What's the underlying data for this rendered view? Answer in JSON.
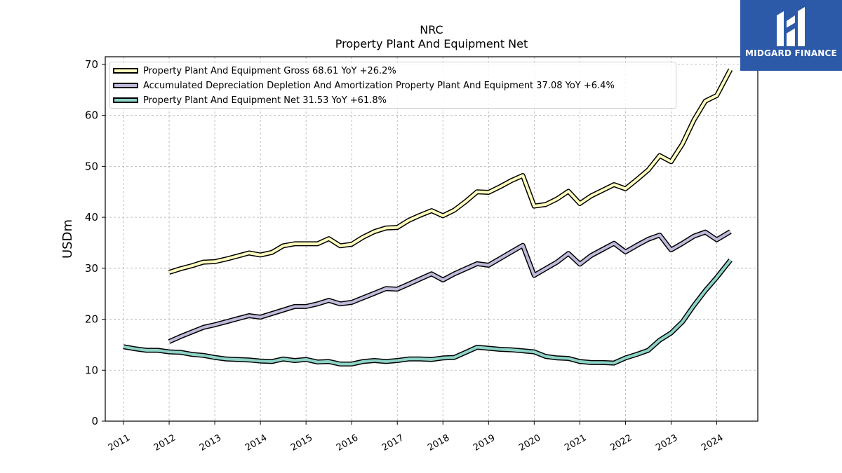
{
  "header": {
    "ticker": "NRC",
    "subtitle": "Property Plant And Equipment Net"
  },
  "logo": {
    "text": "MIDGARD FINANCE",
    "color": "#2c5aa8"
  },
  "chart_data": {
    "type": "line",
    "title": "NRC",
    "subtitle": "Property Plant And Equipment Net",
    "xlabel": "",
    "ylabel": "USDm",
    "xlim": [
      2010.6,
      2024.9
    ],
    "ylim": [
      0,
      71.5
    ],
    "yticks": [
      0,
      10,
      20,
      30,
      40,
      50,
      60,
      70
    ],
    "ytick_labels": [
      "0",
      "10",
      "20",
      "30",
      "40",
      "50",
      "60",
      "70"
    ],
    "xticks": [
      2011,
      2012,
      2013,
      2014,
      2015,
      2016,
      2017,
      2018,
      2019,
      2020,
      2021,
      2022,
      2023,
      2024
    ],
    "xtick_labels": [
      "2011",
      "2012",
      "2013",
      "2014",
      "2015",
      "2016",
      "2017",
      "2018",
      "2019",
      "2020",
      "2021",
      "2022",
      "2023",
      "2024"
    ],
    "grid": true,
    "legend_placement": "top-left",
    "series": [
      {
        "name": "Property Plant And Equipment Gross",
        "legend_label": "Property Plant And Equipment Gross  68.61 YoY +26.2%",
        "color": "#ffffbf",
        "x": [
          2012.0,
          2012.25,
          2012.5,
          2012.75,
          2013.0,
          2013.25,
          2013.5,
          2013.75,
          2014.0,
          2014.25,
          2014.5,
          2014.75,
          2015.0,
          2015.25,
          2015.5,
          2015.75,
          2016.0,
          2016.25,
          2016.5,
          2016.75,
          2017.0,
          2017.25,
          2017.5,
          2017.75,
          2018.0,
          2018.25,
          2018.5,
          2018.75,
          2019.0,
          2019.25,
          2019.5,
          2019.75,
          2020.0,
          2020.25,
          2020.5,
          2020.75,
          2021.0,
          2021.25,
          2021.5,
          2021.75,
          2022.0,
          2022.25,
          2022.5,
          2022.75,
          2023.0,
          2023.25,
          2023.5,
          2023.75,
          2024.0,
          2024.3
        ],
        "values": [
          29.2,
          29.9,
          30.5,
          31.2,
          31.3,
          31.8,
          32.4,
          33.0,
          32.6,
          33.1,
          34.4,
          34.8,
          34.8,
          34.8,
          35.8,
          34.4,
          34.7,
          36.1,
          37.2,
          37.9,
          38.0,
          39.4,
          40.4,
          41.3,
          40.3,
          41.4,
          43.1,
          45.0,
          44.9,
          46.0,
          47.2,
          48.2,
          42.2,
          42.5,
          43.6,
          45.1,
          42.7,
          44.2,
          45.3,
          46.4,
          45.6,
          47.4,
          49.3,
          52.1,
          50.9,
          54.4,
          59.1,
          62.8,
          63.9,
          69.0
        ]
      },
      {
        "name": "Accumulated Depreciation Depletion And Amortization Property Plant And Equipment",
        "legend_label": "Accumulated Depreciation Depletion And Amortization Property Plant And Equipment  37.08 YoY +6.4%",
        "color": "#bebada",
        "x": [
          2012.0,
          2012.25,
          2012.5,
          2012.75,
          2013.0,
          2013.25,
          2013.5,
          2013.75,
          2014.0,
          2014.25,
          2014.5,
          2014.75,
          2015.0,
          2015.25,
          2015.5,
          2015.75,
          2016.0,
          2016.25,
          2016.5,
          2016.75,
          2017.0,
          2017.25,
          2017.5,
          2017.75,
          2018.0,
          2018.25,
          2018.5,
          2018.75,
          2019.0,
          2019.25,
          2019.5,
          2019.75,
          2020.0,
          2020.25,
          2020.5,
          2020.75,
          2021.0,
          2021.25,
          2021.5,
          2021.75,
          2022.0,
          2022.25,
          2022.5,
          2022.75,
          2023.0,
          2023.25,
          2023.5,
          2023.75,
          2024.0,
          2024.3
        ],
        "values": [
          15.6,
          16.6,
          17.5,
          18.4,
          18.9,
          19.5,
          20.1,
          20.7,
          20.4,
          21.1,
          21.8,
          22.5,
          22.5,
          23.0,
          23.7,
          23.0,
          23.3,
          24.2,
          25.1,
          26.0,
          25.9,
          26.9,
          27.9,
          28.9,
          27.7,
          28.9,
          29.9,
          30.9,
          30.6,
          31.9,
          33.2,
          34.5,
          28.6,
          29.9,
          31.2,
          32.9,
          30.8,
          32.5,
          33.7,
          34.9,
          33.2,
          34.5,
          35.7,
          36.5,
          33.6,
          34.9,
          36.3,
          37.1,
          35.6,
          37.2
        ]
      },
      {
        "name": "Property Plant And Equipment Net",
        "legend_label": "Property Plant And Equipment Net  31.53 YoY +61.8%",
        "color": "#8dd3c7",
        "x": [
          2011.0,
          2011.25,
          2011.5,
          2011.75,
          2012.0,
          2012.25,
          2012.5,
          2012.75,
          2013.0,
          2013.25,
          2013.5,
          2013.75,
          2014.0,
          2014.25,
          2014.5,
          2014.75,
          2015.0,
          2015.25,
          2015.5,
          2015.75,
          2016.0,
          2016.25,
          2016.5,
          2016.75,
          2017.0,
          2017.25,
          2017.5,
          2017.75,
          2018.0,
          2018.25,
          2018.5,
          2018.75,
          2019.0,
          2019.25,
          2019.5,
          2019.75,
          2020.0,
          2020.25,
          2020.5,
          2020.75,
          2021.0,
          2021.25,
          2021.5,
          2021.75,
          2022.0,
          2022.25,
          2022.5,
          2022.75,
          2023.0,
          2023.25,
          2023.5,
          2023.75,
          2024.0,
          2024.3
        ],
        "values": [
          14.6,
          14.2,
          13.9,
          13.9,
          13.6,
          13.5,
          13.1,
          12.9,
          12.5,
          12.2,
          12.1,
          12.0,
          11.8,
          11.7,
          12.2,
          11.9,
          12.1,
          11.6,
          11.7,
          11.2,
          11.2,
          11.7,
          11.9,
          11.7,
          11.9,
          12.2,
          12.2,
          12.1,
          12.4,
          12.5,
          13.5,
          14.5,
          14.3,
          14.1,
          14.0,
          13.8,
          13.6,
          12.7,
          12.4,
          12.3,
          11.7,
          11.5,
          11.5,
          11.4,
          12.4,
          13.1,
          13.9,
          15.9,
          17.3,
          19.5,
          22.7,
          25.6,
          28.2,
          31.6
        ]
      }
    ]
  }
}
